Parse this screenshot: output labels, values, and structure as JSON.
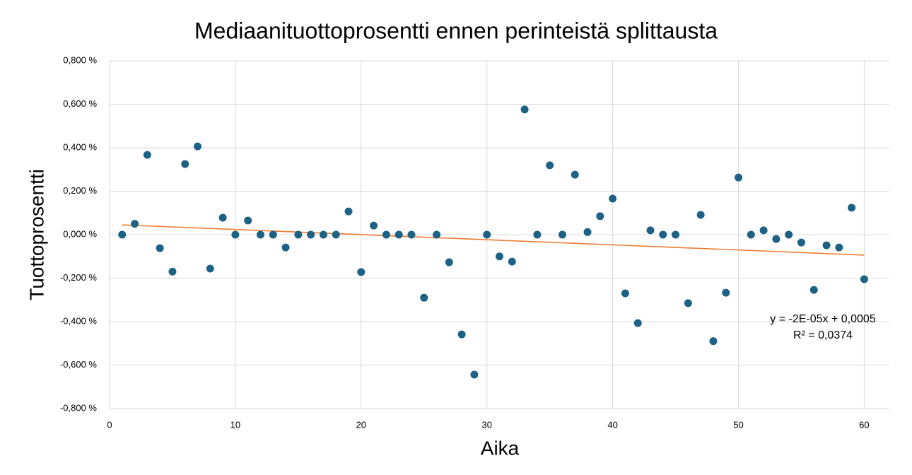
{
  "chart_data": {
    "type": "scatter",
    "title": "Mediaanituottoprosentti ennen perinteistä splittausta",
    "x_label": "Aika",
    "y_label": "Tuottoprosentti",
    "series": [
      {
        "name": "Tuottoprosentti",
        "color": "#1d6184",
        "x": [
          1,
          2,
          3,
          4,
          5,
          6,
          7,
          8,
          9,
          10,
          11,
          12,
          13,
          14,
          15,
          16,
          17,
          18,
          19,
          20,
          21,
          22,
          23,
          24,
          25,
          26,
          27,
          28,
          29,
          30,
          31,
          32,
          33,
          34,
          35,
          36,
          37,
          38,
          39,
          40,
          41,
          42,
          43,
          44,
          45,
          46,
          47,
          48,
          49,
          50,
          51,
          52,
          53,
          54,
          55,
          56,
          57,
          58,
          59,
          60
        ],
        "values": [
          0,
          0.05,
          0.367,
          -0.062,
          -0.17,
          0.325,
          0.406,
          -0.156,
          0.078,
          0,
          0.065,
          0,
          0,
          -0.059,
          0,
          0,
          0,
          0,
          0.107,
          -0.172,
          0.042,
          0,
          0,
          0,
          -0.29,
          0,
          -0.127,
          -0.459,
          -0.644,
          0,
          -0.1,
          -0.124,
          0.576,
          0,
          0.319,
          0,
          0.276,
          0.012,
          0.085,
          0.166,
          -0.27,
          -0.407,
          0.02,
          0,
          0,
          -0.315,
          0.091,
          -0.49,
          -0.267,
          0.263,
          0,
          0.02,
          -0.02,
          0,
          -0.036,
          -0.254,
          -0.049,
          -0.059,
          0.124,
          -0.205
        ]
      }
    ],
    "trendline": {
      "x": [
        1,
        60
      ],
      "values": [
        0.045,
        -0.094
      ],
      "color": "#ed7d31",
      "equation": "y = -2E-05x + 0,0005",
      "r_squared": "R² = 0,0374"
    },
    "xlim": [
      0,
      62
    ],
    "xticks": [
      0,
      10,
      20,
      30,
      40,
      50,
      60
    ],
    "ylim": [
      -0.8,
      0.8
    ],
    "yticks": [
      {
        "value": -0.8,
        "label": "-0,800 %"
      },
      {
        "value": -0.6,
        "label": "-0,600 %"
      },
      {
        "value": -0.4,
        "label": "-0,400 %"
      },
      {
        "value": -0.2,
        "label": "-0,200 %"
      },
      {
        "value": 0,
        "label": "0,000 %"
      },
      {
        "value": 0.2,
        "label": "0,200 %"
      },
      {
        "value": 0.4,
        "label": "0,400 %"
      },
      {
        "value": 0.6,
        "label": "0,600 %"
      },
      {
        "value": 0.8,
        "label": "0,800 %"
      }
    ],
    "grid": true
  }
}
